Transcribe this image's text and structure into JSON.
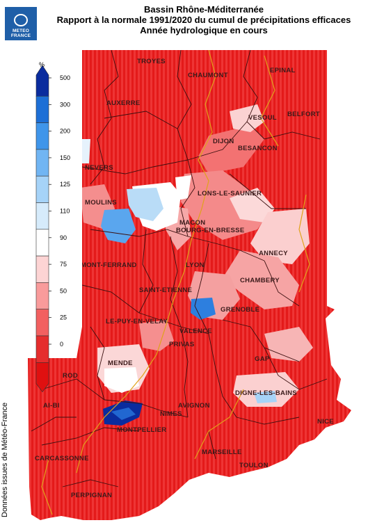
{
  "logo": {
    "line1": "METEO",
    "line2": "FRANCE"
  },
  "title": {
    "line1": "Bassin Rhône-Méditerranée",
    "line2": "Rapport à la normale 1991/2020 du cumul de précipitations efficaces",
    "line3": "Année hydrologique en cours"
  },
  "source": "Données issues de Météo-France",
  "legend": {
    "unit": "%",
    "ticks": [
      "500",
      "300",
      "200",
      "150",
      "125",
      "110",
      "90",
      "75",
      "50",
      "25",
      "0"
    ],
    "colors": [
      "#0a2c9e",
      "#1d6fd6",
      "#3f95ea",
      "#71b5f3",
      "#a6d3f8",
      "#d6ebfb",
      "#ffffff",
      "#fdd4d4",
      "#f99b9b",
      "#f26060",
      "#e52d2d",
      "#e01010"
    ]
  },
  "cities": [
    {
      "name": "TROYES"
    },
    {
      "name": "CHAUMONT"
    },
    {
      "name": "EPINAL"
    },
    {
      "name": "AUXERRE"
    },
    {
      "name": "VESOUL"
    },
    {
      "name": "BELFORT"
    },
    {
      "name": "DIJON"
    },
    {
      "name": "BESANCON"
    },
    {
      "name": "NEVERS"
    },
    {
      "name": "LONS-LE-SAUNIER"
    },
    {
      "name": "MOULINS"
    },
    {
      "name": "MACON"
    },
    {
      "name": "BOURG-EN-BRESSE"
    },
    {
      "name": "ANNECY"
    },
    {
      "name": "LYON"
    },
    {
      "name": "CHAMBERY"
    },
    {
      "name": "MONT-FERRAND"
    },
    {
      "name": "SAINT-ETIENNE"
    },
    {
      "name": "GRENOBLE"
    },
    {
      "name": "LE-PUY-EN-VELAY"
    },
    {
      "name": "VALENCE"
    },
    {
      "name": "PRIVAS"
    },
    {
      "name": "GAP"
    },
    {
      "name": "MENDE"
    },
    {
      "name": "ROD"
    },
    {
      "name": "DIGNE-LES-BAINS"
    },
    {
      "name": "AVIGNON"
    },
    {
      "name": "Al-BI"
    },
    {
      "name": "NIMES"
    },
    {
      "name": "NICE"
    },
    {
      "name": "MONTPELLIER"
    },
    {
      "name": "MARSEILLE"
    },
    {
      "name": "CARCASSONNE"
    },
    {
      "name": "TOULON"
    },
    {
      "name": "PERPIGNAN"
    }
  ]
}
